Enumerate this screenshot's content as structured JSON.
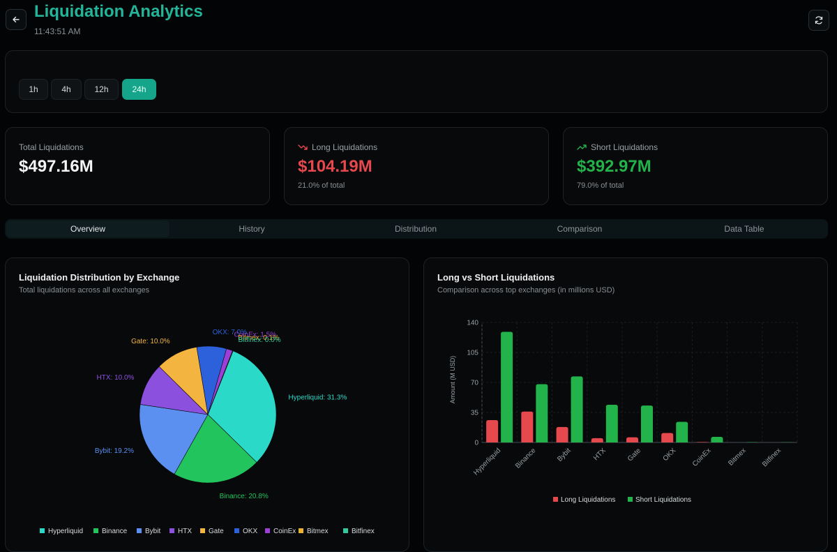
{
  "header": {
    "title": "Liquidation Analytics",
    "time": "11:43:51 AM"
  },
  "time_filters": {
    "options": [
      "1h",
      "4h",
      "12h",
      "24h"
    ],
    "active": "24h"
  },
  "summary": {
    "total": {
      "label": "Total Liquidations",
      "value": "$497.16M"
    },
    "long": {
      "label": "Long Liquidations",
      "value": "$104.19M",
      "share": "21.0% of total"
    },
    "short": {
      "label": "Short Liquidations",
      "value": "$392.97M",
      "share": "79.0% of total"
    }
  },
  "tabs": [
    "Overview",
    "History",
    "Distribution",
    "Comparison",
    "Data Table"
  ],
  "colors": {
    "accent": "#14a58a",
    "title": "#23b59a",
    "long": "#e5484d",
    "short": "#22b34a"
  },
  "pie_card": {
    "title": "Liquidation Distribution by Exchange",
    "subtitle": "Total liquidations across all exchanges"
  },
  "bar_card": {
    "title": "Long vs Short Liquidations",
    "subtitle": "Comparison across top exchanges (in millions USD)"
  },
  "chart_data": [
    {
      "type": "pie",
      "title": "Liquidation Distribution by Exchange",
      "slices": [
        {
          "name": "Hyperliquid",
          "value": 31.3,
          "label": "Hyperliquid: 31.3%",
          "color": "#2ad9c8"
        },
        {
          "name": "Binance",
          "value": 20.8,
          "label": "Binance: 20.8%",
          "color": "#21c45d"
        },
        {
          "name": "Bybit",
          "value": 19.2,
          "label": "Bybit: 19.2%",
          "color": "#5b8ff0"
        },
        {
          "name": "HTX",
          "value": 10.0,
          "label": "HTX: 10.0%",
          "color": "#8b50de"
        },
        {
          "name": "Gate",
          "value": 10.0,
          "label": "Gate: 10.0%",
          "color": "#f4b440"
        },
        {
          "name": "OKX",
          "value": 7.0,
          "label": "OKX: 7.0%",
          "color": "#2c61db"
        },
        {
          "name": "CoinEx",
          "value": 1.5,
          "label": "CoinEx: 1.5%",
          "color": "#9b3fd6"
        },
        {
          "name": "Bitmex",
          "value": 0.1,
          "label": "Bitmex: 0.1%",
          "color": "#eab32e"
        },
        {
          "name": "Bitfinex",
          "value": 0.0,
          "label": "Bitfinex: 0.0%",
          "color": "#33c9a0"
        }
      ],
      "legend": [
        "Hyperliquid",
        "Binance",
        "Bybit",
        "HTX",
        "Gate",
        "OKX",
        "CoinEx",
        "Bitmex",
        "Bitfinex"
      ]
    },
    {
      "type": "bar",
      "title": "Long vs Short Liquidations",
      "categories": [
        "Hyperliquid",
        "Binance",
        "Bybit",
        "HTX",
        "Gate",
        "OKX",
        "CoinEx",
        "Bitmex",
        "Bitfinex"
      ],
      "series": [
        {
          "name": "Long Liquidations",
          "color": "#e5484d",
          "values": [
            26,
            36,
            18,
            5,
            6,
            11,
            0.5,
            0,
            0
          ]
        },
        {
          "name": "Short Liquidations",
          "color": "#22b34a",
          "values": [
            129,
            68,
            77,
            44,
            43,
            24,
            6.5,
            0.3,
            0.2
          ]
        }
      ],
      "ylabel": "Amount (M USD)",
      "yticks": [
        0,
        35,
        70,
        105,
        140
      ],
      "ylim": [
        0,
        140
      ]
    }
  ]
}
